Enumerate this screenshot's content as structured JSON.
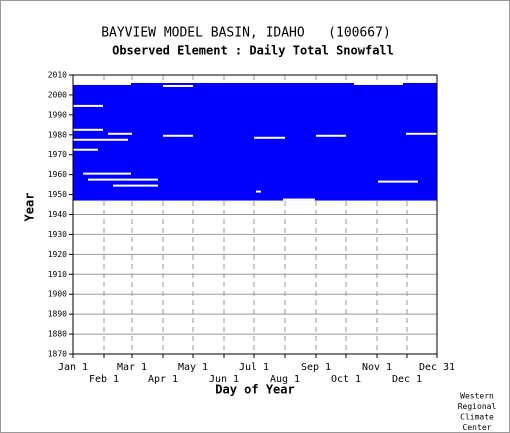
{
  "chart_data": {
    "type": "availability",
    "title": "BAYVIEW MODEL BASIN, IDAHO   (100667)",
    "subtitle": "Observed Element : Daily Total Snowfall",
    "x_label": "Day of Year",
    "y_label": "Year",
    "xlim": [
      0,
      364
    ],
    "ylim": [
      1870,
      2010
    ],
    "yticks": [
      1870,
      1880,
      1890,
      1900,
      1910,
      1920,
      1930,
      1940,
      1950,
      1960,
      1970,
      1980,
      1990,
      2000,
      2010
    ],
    "xticks": [
      {
        "value": 0,
        "label": "Jan 1"
      },
      {
        "value": 31,
        "label": "Feb 1"
      },
      {
        "value": 59,
        "label": "Mar 1"
      },
      {
        "value": 90,
        "label": "Apr 1"
      },
      {
        "value": 120,
        "label": "May 1"
      },
      {
        "value": 151,
        "label": "Jun 1"
      },
      {
        "value": 181,
        "label": "Jul 1"
      },
      {
        "value": 212,
        "label": "Aug 1"
      },
      {
        "value": 243,
        "label": "Sep 1"
      },
      {
        "value": 273,
        "label": "Oct 1"
      },
      {
        "value": 304,
        "label": "Nov 1"
      },
      {
        "value": 334,
        "label": "Dec 1"
      },
      {
        "value": 364,
        "label": "Dec 31"
      }
    ],
    "color": "#0000ff",
    "coverage": {
      "start_year": 1947,
      "end_year": 2006,
      "start_day": 0,
      "end_day": 364
    },
    "gaps": [
      {
        "year": 2006,
        "start": 0,
        "end": 58
      },
      {
        "year": 2006,
        "start": 281,
        "end": 330
      },
      {
        "year": 2005,
        "start": 90,
        "end": 120
      },
      {
        "year": 1995,
        "start": 0,
        "end": 30
      },
      {
        "year": 1983,
        "start": 0,
        "end": 30
      },
      {
        "year": 1981,
        "start": 35,
        "end": 59
      },
      {
        "year": 1981,
        "start": 333,
        "end": 364
      },
      {
        "year": 1980,
        "start": 90,
        "end": 120
      },
      {
        "year": 1980,
        "start": 243,
        "end": 273
      },
      {
        "year": 1979,
        "start": 181,
        "end": 212
      },
      {
        "year": 1978,
        "start": 0,
        "end": 55
      },
      {
        "year": 1973,
        "start": 0,
        "end": 25
      },
      {
        "year": 1961,
        "start": 10,
        "end": 58
      },
      {
        "year": 1958,
        "start": 15,
        "end": 85
      },
      {
        "year": 1957,
        "start": 305,
        "end": 345
      },
      {
        "year": 1955,
        "start": 40,
        "end": 85
      },
      {
        "year": 1952,
        "start": 183,
        "end": 188
      },
      {
        "year": 1948,
        "start": 210,
        "end": 242
      }
    ],
    "credit": [
      "Western",
      "Regional",
      "Climate",
      "Center"
    ]
  }
}
